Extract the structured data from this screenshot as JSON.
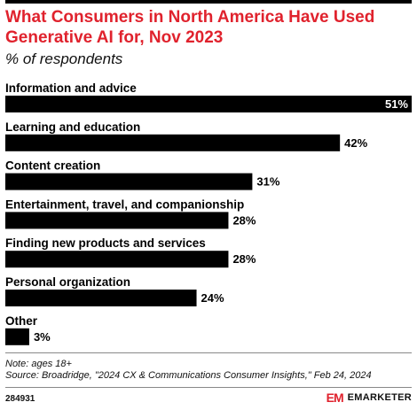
{
  "chart_data": {
    "type": "bar",
    "orientation": "horizontal",
    "title": "What Consumers in North America Have Used Generative AI for, Nov 2023",
    "subtitle": "% of respondents",
    "categories": [
      "Information and advice",
      "Learning and education",
      "Content creation",
      "Entertainment, travel, and companionship",
      "Finding new products and services",
      "Personal organization",
      "Other"
    ],
    "values": [
      51,
      42,
      31,
      28,
      28,
      24,
      3
    ],
    "value_labels": [
      "51%",
      "42%",
      "31%",
      "28%",
      "28%",
      "24%",
      "3%"
    ],
    "xlim": [
      0,
      51
    ],
    "bar_color": "#000000",
    "grid": false,
    "legend": "none"
  },
  "footer": {
    "note": "Note: ages 18+",
    "source": "Source: Broadridge, \"2024 CX & Communications Consumer Insights,\" Feb 24, 2024",
    "chart_id": "284931",
    "brand_mark": "EM",
    "brand_name": "EMARKETER"
  },
  "colors": {
    "title": "#e0222d",
    "accent": "#e0222d"
  }
}
